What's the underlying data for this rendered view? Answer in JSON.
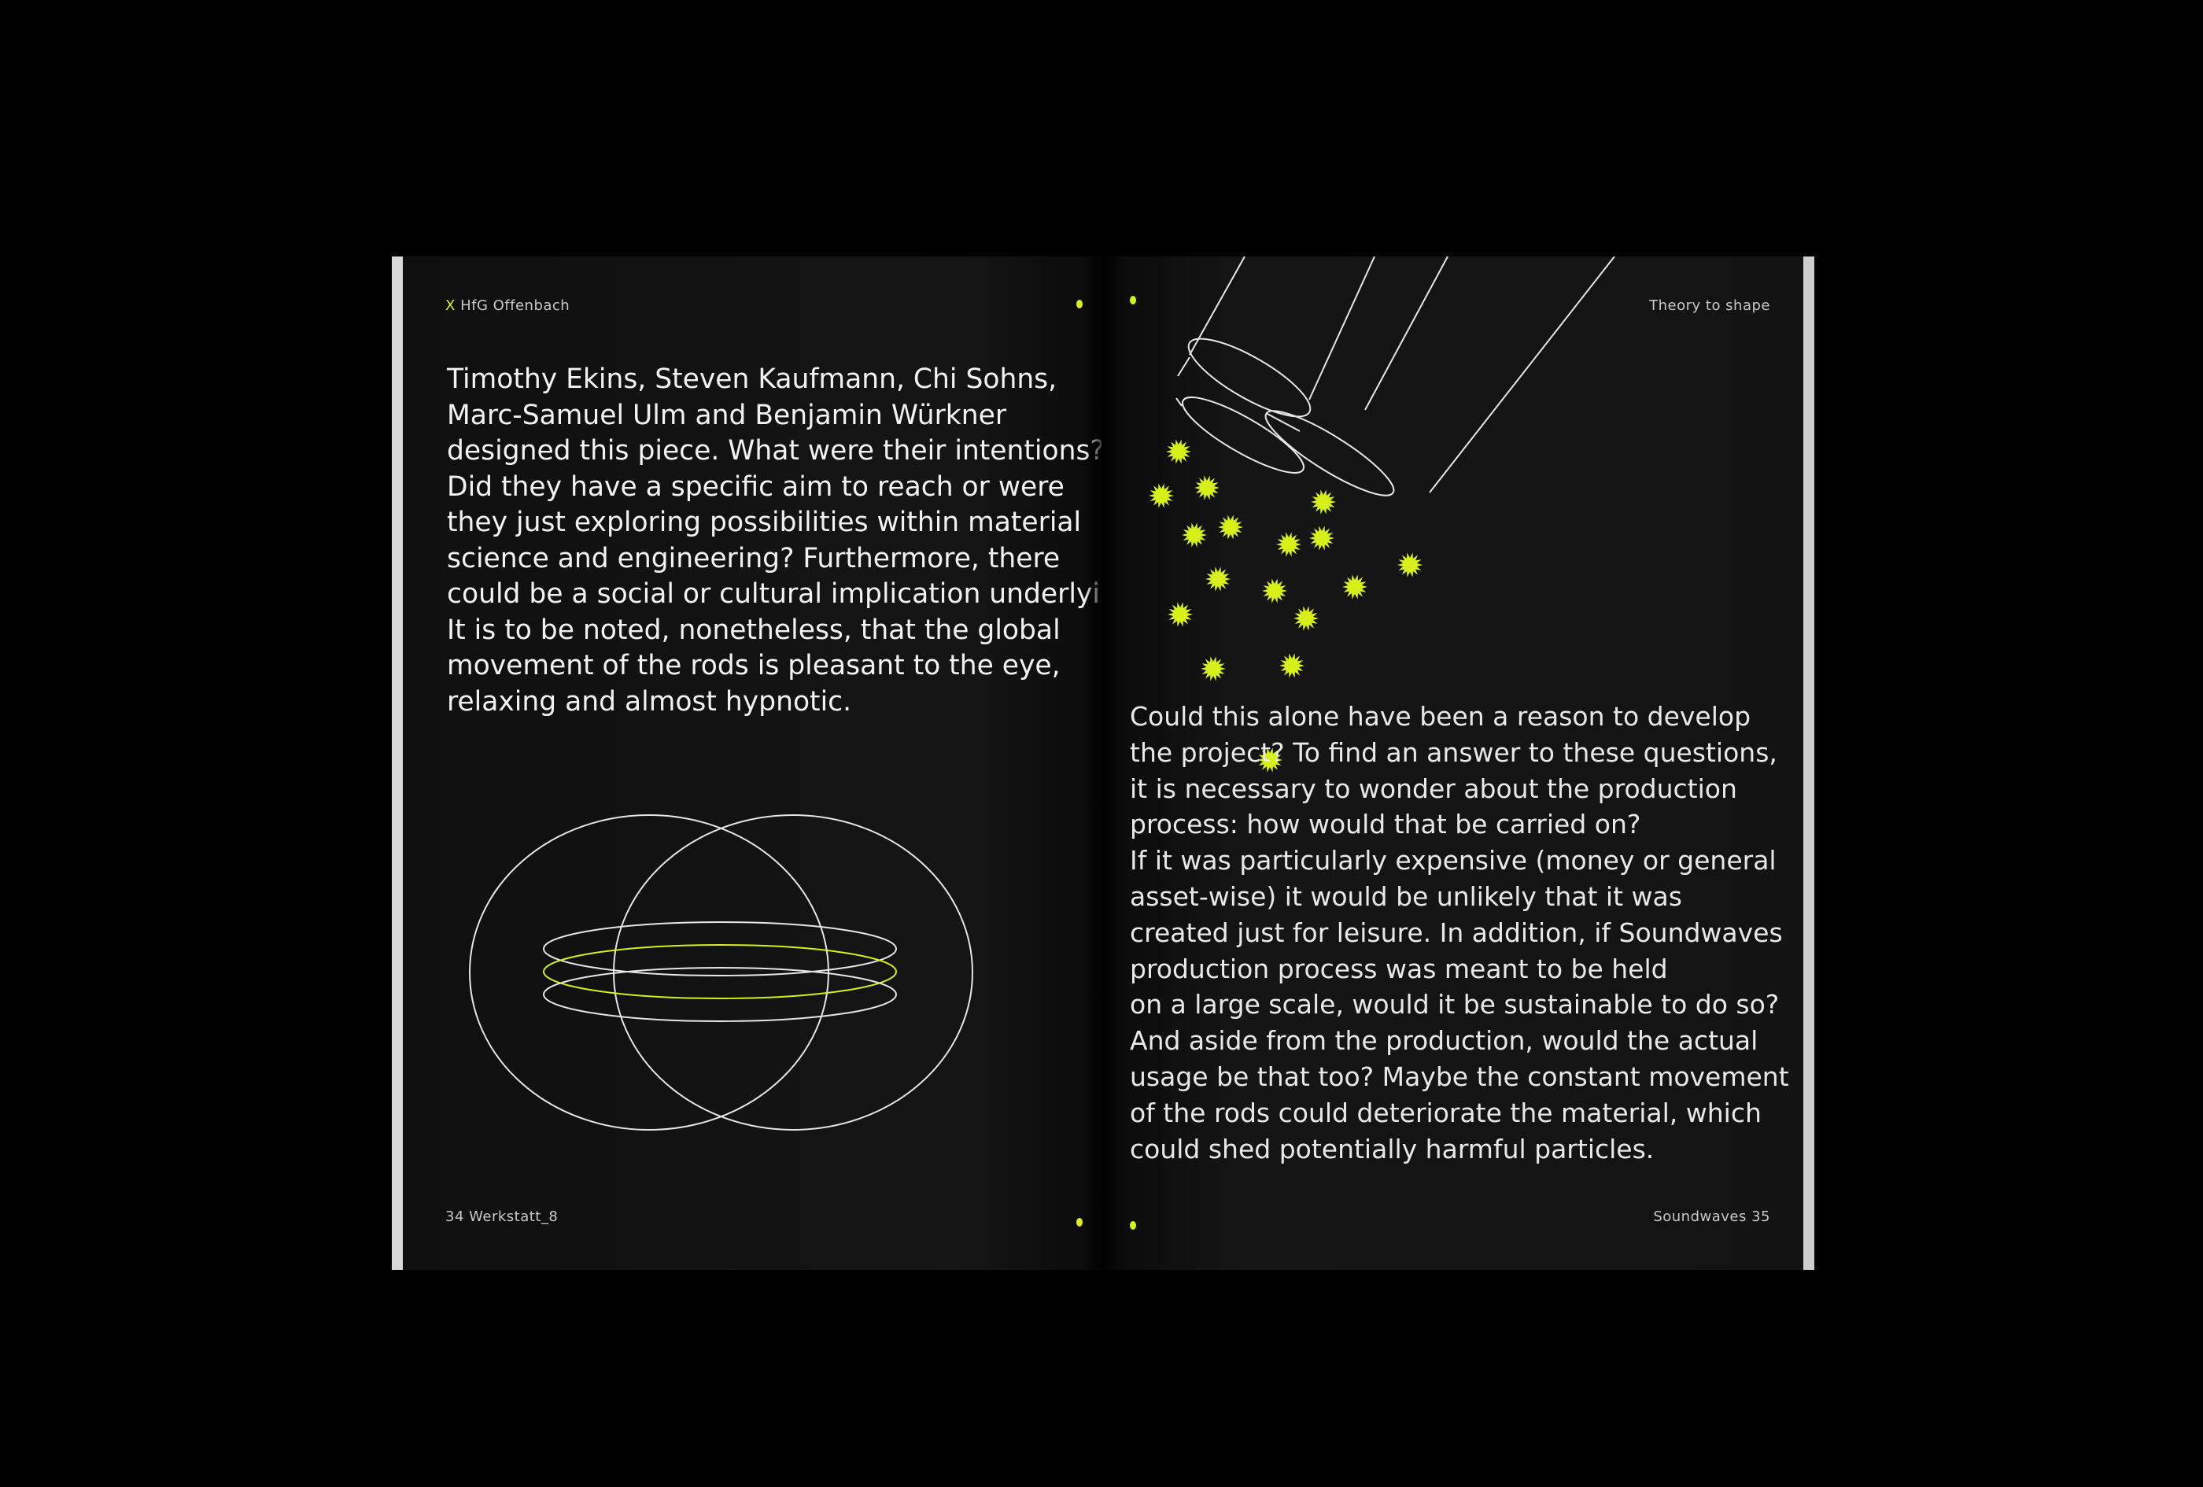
{
  "left_page": {
    "header_mark": "X",
    "header_text": "HfG Offenbach",
    "footer_text": "34 Werkstatt_8",
    "body_lines": [
      "Timothy Ekins, Steven Kaufmann, Chi Sohns,",
      "Marc-Samuel Ulm and Benjamin Würkner",
      "designed this piece. What were their intentions?",
      "Did they have a specific aim to reach or were",
      "they just exploring possibilities within material",
      "science and engineering? Furthermore, there",
      "could be a social or cultural implication underlying.",
      "It is to be noted, nonetheless, that the global",
      "movement of the rods is pleasant to the eye,",
      "relaxing and almost hypnotic."
    ]
  },
  "right_page": {
    "header_text": "Theory to shape",
    "footer_text": "Soundwaves 35",
    "body_lines": [
      "Could this alone have been a reason to develop",
      "the project? To find an answer to these questions,",
      "it is necessary to wonder about the production",
      "process: how would that be carried on?",
      "If it was particularly expensive (money or general",
      "asset-wise) it would be unlikely that it was",
      "created just for leisure. In addition, if Soundwaves",
      "production process was meant to be held",
      "on a large scale, would it be sustainable to do so?",
      "And aside from the production, would the actual",
      "usage be that too? Maybe the constant movement",
      "of the rods could deteriorate the material, which",
      "could shed potentially harmful particles."
    ]
  },
  "colors": {
    "accent": "#d7f01a",
    "page": "#121212",
    "text": "#f2f2f2",
    "line_art": "#e6e6e6"
  },
  "icons": {
    "circles_diagram": "two-overlapping-circles-with-rings",
    "rods_illustration": "cylinder-rods",
    "particles": "spiky-particle"
  }
}
